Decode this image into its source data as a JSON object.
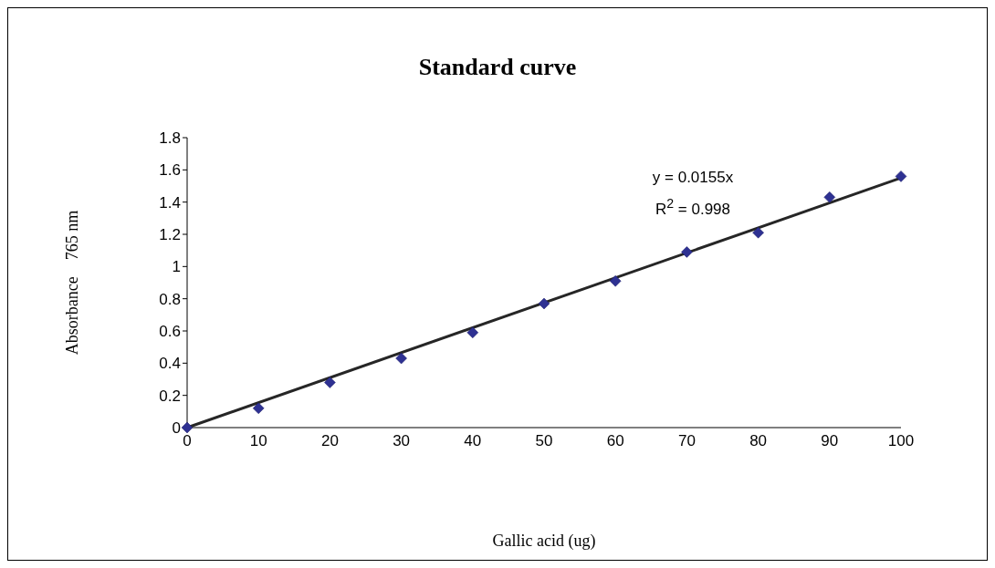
{
  "chart_data": {
    "type": "scatter",
    "title": "Standard curve",
    "xlabel": "Gallic acid (ug)",
    "ylabel": "Absorbance    765 nm",
    "annotations": [
      "y = 0.0155x",
      "R$^{2}$ = 0.998"
    ],
    "xlim": [
      0,
      100
    ],
    "xticks": [
      0,
      10,
      20,
      30,
      40,
      50,
      60,
      70,
      80,
      90,
      100
    ],
    "ylim": [
      0,
      1.8
    ],
    "yticks": [
      0,
      0.2,
      0.4,
      0.6,
      0.8,
      1,
      1.2,
      1.4,
      1.6,
      1.8
    ],
    "grid": false,
    "series": [
      {
        "color": "#2e3192",
        "marker": "diamond",
        "x": [
          0,
          10,
          20,
          30,
          40,
          50,
          60,
          70,
          80,
          90,
          100
        ],
        "values": [
          0,
          0.12,
          0.28,
          0.43,
          0.59,
          0.77,
          0.91,
          1.09,
          1.21,
          1.43,
          1.56
        ]
      },
      {
        "type": "line",
        "color": "#262626",
        "marker": "none",
        "line_style": "solid",
        "x": [
          0,
          100
        ],
        "values": [
          0,
          1.55
        ]
      }
    ]
  }
}
